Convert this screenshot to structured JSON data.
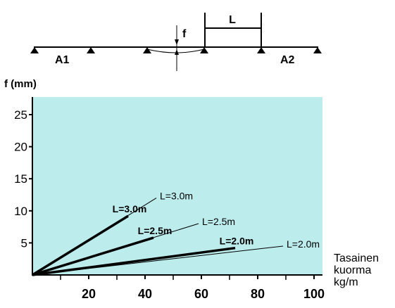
{
  "diagram": {
    "span_label": "L",
    "deflection_label": "f",
    "support_left_label": "A1",
    "support_right_label": "A2"
  },
  "chart_data": {
    "type": "line",
    "ylabel": "f (mm)",
    "xlabel": "Tasainen kuorma kg/m",
    "xlabel_lines": [
      "Tasainen",
      "kuorma",
      "kg/m"
    ],
    "xlim": [
      0,
      100
    ],
    "ylim": [
      0,
      25
    ],
    "x_ticks": [
      20,
      40,
      60,
      80,
      100
    ],
    "x_minor_ticks": [
      10,
      30,
      50,
      70,
      90
    ],
    "y_ticks": [
      5,
      10,
      15,
      20,
      25
    ],
    "grid": false,
    "background": "#bdeced",
    "series": [
      {
        "name": "L=3.0m",
        "x": [
          0,
          34
        ],
        "y": [
          0,
          9.2
        ],
        "line": "bold"
      },
      {
        "name": "L=2.5m",
        "x": [
          0,
          43
        ],
        "y": [
          0,
          5.8
        ],
        "line": "bold"
      },
      {
        "name": "L=2.0m",
        "x": [
          0,
          72
        ],
        "y": [
          0,
          4.2
        ],
        "line": "bold"
      },
      {
        "name": "L=3.0m",
        "x": [
          0,
          44
        ],
        "y": [
          0,
          12.0
        ],
        "line": "thin"
      },
      {
        "name": "L=2.5m",
        "x": [
          0,
          59
        ],
        "y": [
          0,
          8.0
        ],
        "line": "thin"
      },
      {
        "name": "L=2.0m",
        "x": [
          0,
          89
        ],
        "y": [
          0,
          4.5
        ],
        "line": "thin"
      }
    ]
  }
}
